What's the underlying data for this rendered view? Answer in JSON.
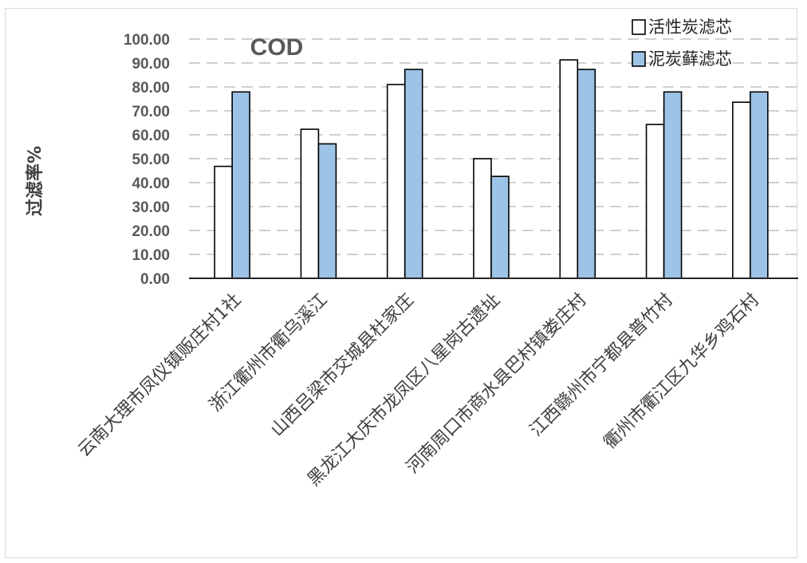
{
  "chart_data": {
    "type": "bar",
    "title": "COD",
    "ylabel": "过滤率%",
    "xlabel": "",
    "ylim": [
      0,
      100
    ],
    "yticks": [
      "0.00",
      "10.00",
      "20.00",
      "30.00",
      "40.00",
      "50.00",
      "60.00",
      "70.00",
      "80.00",
      "90.00",
      "100.00"
    ],
    "grid": "horizontal dashed",
    "legend_position": "top-right",
    "categories": [
      "云南大理市凤仪镇贩庄村1社",
      "浙江衢州市衢乌溪江",
      "山西吕梁市交城县杜家庄",
      "黑龙江大庆市龙凤区八星岗古遗址",
      "河南周口市商水县巴村镇娄庄村",
      "江西赣州市宁都县普竹村",
      "衢州市衢江区九华乡鸡石村"
    ],
    "series": [
      {
        "name": "活性炭滤芯",
        "color": "#ffffff",
        "values": [
          46.8,
          62.3,
          81.0,
          50.0,
          91.3,
          64.3,
          73.6
        ]
      },
      {
        "name": "泥炭藓滤芯",
        "color": "#9dc3e6",
        "values": [
          77.9,
          56.2,
          87.3,
          42.6,
          87.3,
          77.9,
          77.9
        ]
      }
    ]
  }
}
